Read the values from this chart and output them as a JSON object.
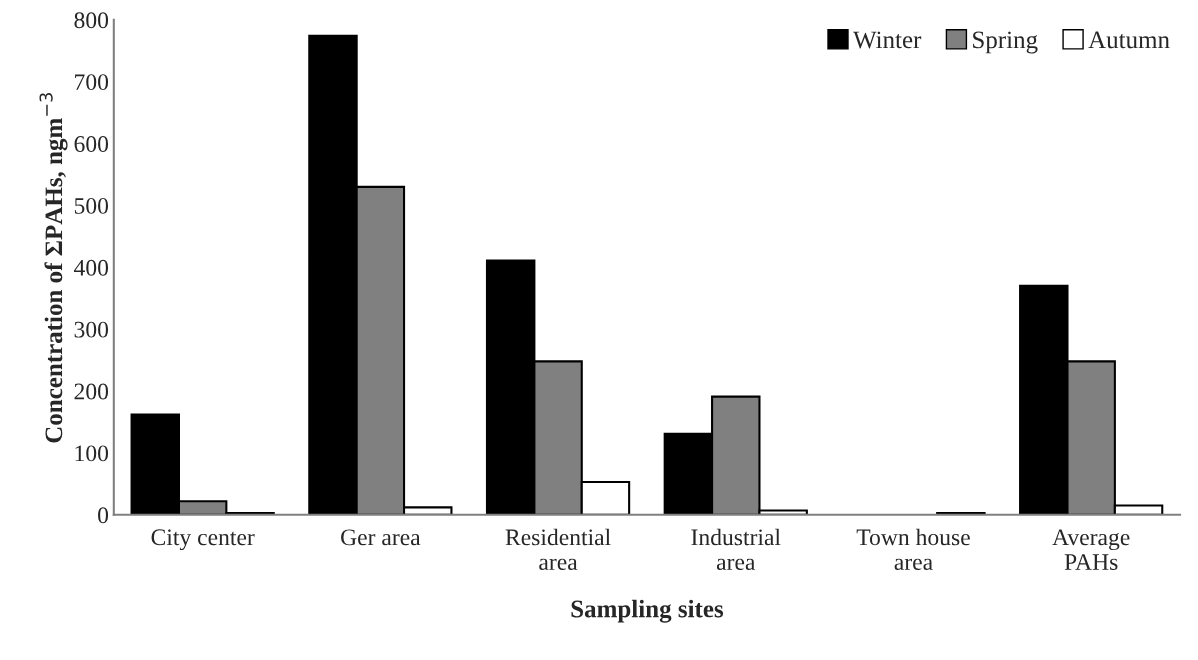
{
  "chart_data": {
    "type": "bar",
    "xlabel": "Sampling sites",
    "ylabel": "Concentration of ΣPAHs, ngm$^{−3}$",
    "categories": [
      "City center",
      "Ger area",
      "Residential\narea",
      "Industrial\narea",
      "Town house\narea",
      "Average\nPAHs"
    ],
    "series": [
      {
        "name": "Winter",
        "color": "#000000",
        "values": [
          162,
          774,
          411,
          131,
          null,
          370
        ]
      },
      {
        "name": "Spring",
        "color": "#808080",
        "values": [
          22,
          530,
          248,
          191,
          null,
          248
        ]
      },
      {
        "name": "Autumn",
        "color": "#ffffff",
        "values": [
          3,
          12,
          53,
          7,
          3,
          15
        ]
      }
    ],
    "ylim": [
      0,
      800
    ],
    "yticks": [
      0,
      100,
      200,
      300,
      400,
      500,
      600,
      700,
      800
    ],
    "grid": false,
    "legend": "top right"
  }
}
